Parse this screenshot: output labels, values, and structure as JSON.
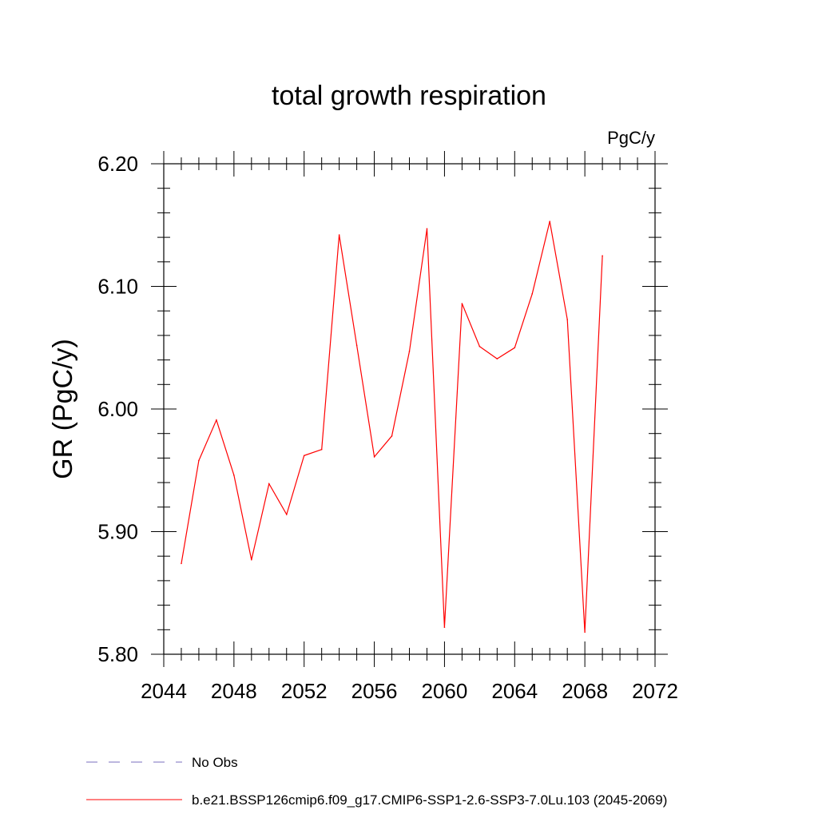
{
  "chart_data": {
    "type": "line",
    "title": "total growth respiration",
    "units": "PgC/y",
    "ylabel": "GR  (PgC/y)",
    "xlabel": "",
    "xlim": [
      2044,
      2072
    ],
    "ylim": [
      5.8,
      6.2
    ],
    "x_ticks": [
      "2044",
      "2048",
      "2052",
      "2056",
      "2060",
      "2064",
      "2068",
      "2072"
    ],
    "y_ticks": [
      "5.80",
      "5.90",
      "6.00",
      "6.10",
      "6.20"
    ],
    "series": [
      {
        "name": "b.e21.BSSP126cmip6.f09_g17.CMIP6-SSP1-2.6-SSP3-7.0Lu.103 (2045-2069)",
        "color": "#ff0000",
        "x": [
          2045,
          2046,
          2047,
          2048,
          2049,
          2050,
          2051,
          2052,
          2053,
          2054,
          2055,
          2056,
          2057,
          2058,
          2059,
          2060,
          2061,
          2062,
          2063,
          2064,
          2065,
          2066,
          2067,
          2068,
          2069
        ],
        "values": [
          5.874,
          5.958,
          5.991,
          5.946,
          5.877,
          5.939,
          5.914,
          5.962,
          5.967,
          6.142,
          6.052,
          5.961,
          5.978,
          6.047,
          6.147,
          5.822,
          6.086,
          6.051,
          6.041,
          6.05,
          6.094,
          6.153,
          6.073,
          5.818,
          6.125
        ]
      }
    ],
    "legend": [
      {
        "label": "No Obs",
        "color": "#7a6fbf",
        "style": "dashed"
      },
      {
        "label": "b.e21.BSSP126cmip6.f09_g17.CMIP6-SSP1-2.6-SSP3-7.0Lu.103 (2045-2069)",
        "color": "#ff0000",
        "style": "solid"
      }
    ]
  }
}
